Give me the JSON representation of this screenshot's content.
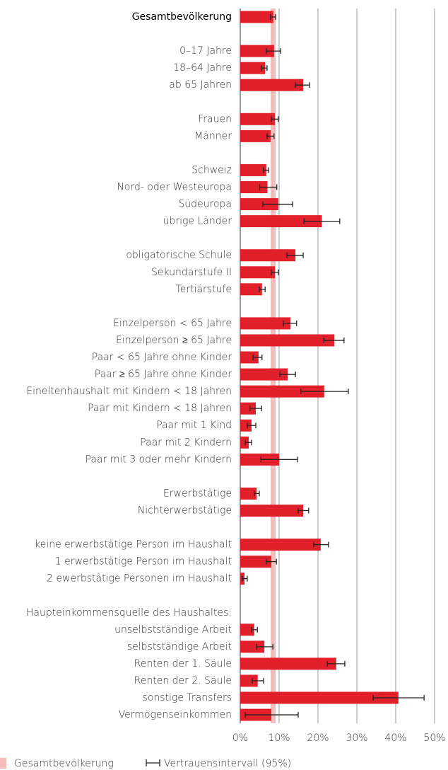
{
  "chart_data": {
    "type": "bar",
    "orientation": "horizontal",
    "color": "#e2202b",
    "band_color": "#f6bcbc",
    "categories": [
      "Gesamtbevölkerung",
      null,
      "0–17 Jahre",
      "18–64 Jahre",
      "ab 65 Jahren",
      null,
      "Frauen",
      "Männer",
      null,
      "Schweiz",
      "Nord- oder Westeuropa",
      "Südeuropa",
      "übrige Länder",
      null,
      "obligatorische Schule",
      "Sekundarstufe II",
      "Tertiärstufe",
      null,
      "Einzelperson < 65 Jahre",
      "Einzelperson ≥ 65 Jahre",
      "Paar < 65 Jahre ohne Kinder",
      "Paar ≥ 65 Jahre ohne Kinder",
      "Eineltenhaushalt mit Kindern < 18 Jahren",
      "Paar mit Kindern < 18 Jahren",
      "Paar mit 1 Kind",
      "Paar mit 2 Kindern",
      "Paar mit 3 oder mehr Kindern",
      null,
      "Erwerbstätige",
      "Nichterwerbstätige",
      null,
      "keine erwerbstätige Person im Haushalt",
      "1 erwerbstätige Person im Haushalt",
      "2 ewerbstätige Personen im Haushalt",
      null,
      "Haupteinkommensquelle des Haushaltes:",
      "unselbstständige Arbeit",
      "selbstständige Arbeit",
      "Renten der 1. Säule",
      "Renten der 2. Säule",
      "sonstige Transfers",
      "Vermögenseinkommen"
    ],
    "values": [
      8.5,
      null,
      8.7,
      6.4,
      16.2,
      null,
      8.9,
      7.8,
      null,
      6.7,
      7.0,
      9.8,
      21.0,
      null,
      14.2,
      8.9,
      5.6,
      null,
      12.9,
      24.2,
      4.7,
      12.2,
      21.6,
      4.0,
      2.9,
      2.2,
      10.0,
      null,
      4.2,
      16.2,
      null,
      20.7,
      8.0,
      1.1,
      null,
      null,
      3.6,
      6.2,
      24.7,
      4.5,
      40.7,
      8.0
    ],
    "ci_low": [
      7.8,
      null,
      6.7,
      5.5,
      14.2,
      null,
      8.0,
      6.9,
      null,
      6.0,
      5.0,
      5.8,
      16.4,
      null,
      12.0,
      8.0,
      4.9,
      null,
      11.1,
      21.5,
      3.3,
      10.2,
      15.6,
      2.5,
      1.8,
      1.3,
      5.3,
      null,
      3.6,
      14.9,
      null,
      18.9,
      6.7,
      0.5,
      null,
      null,
      2.9,
      4.2,
      22.4,
      3.1,
      34.2,
      1.3
    ],
    "ci_high": [
      9.1,
      null,
      10.4,
      6.9,
      17.8,
      null,
      9.8,
      8.7,
      null,
      7.3,
      9.4,
      13.5,
      25.6,
      null,
      16.2,
      9.8,
      6.4,
      null,
      14.5,
      26.7,
      5.6,
      14.2,
      27.8,
      5.5,
      4.0,
      2.9,
      14.7,
      null,
      4.9,
      17.6,
      null,
      22.7,
      9.3,
      1.8,
      null,
      null,
      4.4,
      8.4,
      26.9,
      6.0,
      47.3,
      14.9
    ],
    "xlim": [
      0,
      50
    ],
    "xticks": [
      {
        "value": 0,
        "label": "0%"
      },
      {
        "value": 10,
        "label": "10%"
      },
      {
        "value": 20,
        "label": "20%"
      },
      {
        "value": 30,
        "label": "30%"
      },
      {
        "value": 40,
        "label": "40%"
      },
      {
        "value": 50,
        "label": "50%"
      }
    ],
    "grid": true,
    "legend": [
      "Gesamtbevölkerung",
      "Vertrauensintervall (95%)"
    ]
  }
}
